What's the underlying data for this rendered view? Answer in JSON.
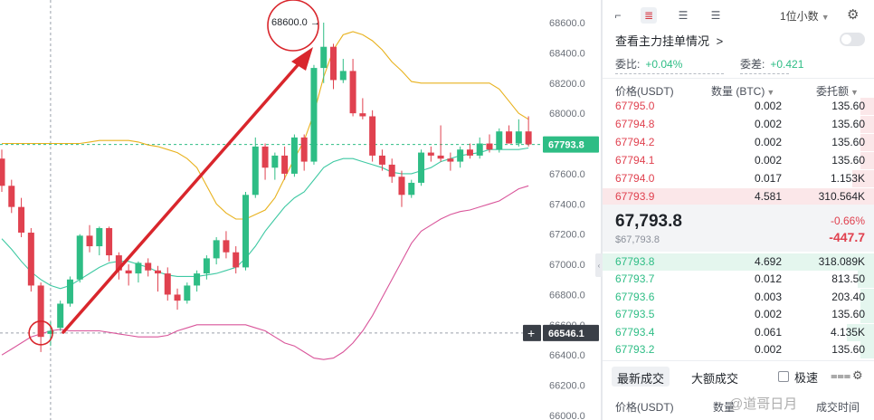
{
  "chart_data": {
    "type": "candlestick",
    "ylim": [
      66000,
      68700
    ],
    "y_ticks": [
      "68600.0",
      "68400.0",
      "68200.0",
      "68000.0",
      "67800.0",
      "67600.0",
      "67400.0",
      "67200.0",
      "67000.0",
      "66800.0",
      "66600.0",
      "66400.0",
      "66200.0",
      "66000.0"
    ],
    "current_price_label": "67793.8",
    "current_price": 67793.8,
    "crosshair_price_label": "66546.1",
    "crosshair_price": 66546.1,
    "high_annotation": "68600.0",
    "high_value": 68600,
    "low_value": 66420,
    "candles": [
      {
        "o": 67700,
        "h": 67760,
        "l": 67480,
        "c": 67520
      },
      {
        "o": 67520,
        "h": 67560,
        "l": 67340,
        "c": 67380
      },
      {
        "o": 67380,
        "h": 67440,
        "l": 67180,
        "c": 67210
      },
      {
        "o": 67210,
        "h": 67240,
        "l": 66820,
        "c": 66860
      },
      {
        "o": 66860,
        "h": 66880,
        "l": 66420,
        "c": 66520
      },
      {
        "o": 66540,
        "h": 66620,
        "l": 66460,
        "c": 66560
      },
      {
        "o": 66580,
        "h": 66760,
        "l": 66560,
        "c": 66740
      },
      {
        "o": 66740,
        "h": 66920,
        "l": 66720,
        "c": 66900
      },
      {
        "o": 66900,
        "h": 67200,
        "l": 66880,
        "c": 67190
      },
      {
        "o": 67190,
        "h": 67260,
        "l": 67080,
        "c": 67120
      },
      {
        "o": 67120,
        "h": 67250,
        "l": 67060,
        "c": 67240
      },
      {
        "o": 67240,
        "h": 67250,
        "l": 67020,
        "c": 67060
      },
      {
        "o": 67060,
        "h": 67080,
        "l": 66900,
        "c": 66960
      },
      {
        "o": 66960,
        "h": 67000,
        "l": 66860,
        "c": 66940
      },
      {
        "o": 66940,
        "h": 67020,
        "l": 66880,
        "c": 67010
      },
      {
        "o": 67010,
        "h": 67040,
        "l": 66920,
        "c": 66960
      },
      {
        "o": 66960,
        "h": 66990,
        "l": 66820,
        "c": 66940
      },
      {
        "o": 66940,
        "h": 66980,
        "l": 66760,
        "c": 66800
      },
      {
        "o": 66800,
        "h": 66840,
        "l": 66700,
        "c": 66760
      },
      {
        "o": 66760,
        "h": 66880,
        "l": 66740,
        "c": 66860
      },
      {
        "o": 66860,
        "h": 66960,
        "l": 66820,
        "c": 66940
      },
      {
        "o": 66940,
        "h": 67060,
        "l": 66900,
        "c": 67040
      },
      {
        "o": 67040,
        "h": 67180,
        "l": 67000,
        "c": 67160
      },
      {
        "o": 67160,
        "h": 67220,
        "l": 67040,
        "c": 67080
      },
      {
        "o": 67080,
        "h": 67120,
        "l": 66940,
        "c": 66980
      },
      {
        "o": 66980,
        "h": 67480,
        "l": 66960,
        "c": 67460
      },
      {
        "o": 67460,
        "h": 67840,
        "l": 67440,
        "c": 67780
      },
      {
        "o": 67780,
        "h": 67800,
        "l": 67560,
        "c": 67640
      },
      {
        "o": 67640,
        "h": 67740,
        "l": 67560,
        "c": 67720
      },
      {
        "o": 67720,
        "h": 67780,
        "l": 67560,
        "c": 67600
      },
      {
        "o": 67600,
        "h": 67860,
        "l": 67580,
        "c": 67840
      },
      {
        "o": 67840,
        "h": 67860,
        "l": 67620,
        "c": 67680
      },
      {
        "o": 67680,
        "h": 68320,
        "l": 67660,
        "c": 68300
      },
      {
        "o": 68300,
        "h": 68600,
        "l": 68200,
        "c": 68440
      },
      {
        "o": 68440,
        "h": 68460,
        "l": 68160,
        "c": 68220
      },
      {
        "o": 68220,
        "h": 68360,
        "l": 68200,
        "c": 68280
      },
      {
        "o": 68280,
        "h": 68360,
        "l": 67980,
        "c": 68000
      },
      {
        "o": 68000,
        "h": 68100,
        "l": 67960,
        "c": 67980
      },
      {
        "o": 67980,
        "h": 68020,
        "l": 67680,
        "c": 67720
      },
      {
        "o": 67720,
        "h": 67760,
        "l": 67620,
        "c": 67660
      },
      {
        "o": 67660,
        "h": 67700,
        "l": 67540,
        "c": 67580
      },
      {
        "o": 67580,
        "h": 67620,
        "l": 67380,
        "c": 67460
      },
      {
        "o": 67460,
        "h": 67560,
        "l": 67440,
        "c": 67540
      },
      {
        "o": 67540,
        "h": 67760,
        "l": 67520,
        "c": 67740
      },
      {
        "o": 67740,
        "h": 67780,
        "l": 67680,
        "c": 67720
      },
      {
        "o": 67720,
        "h": 67920,
        "l": 67680,
        "c": 67700
      },
      {
        "o": 67700,
        "h": 67740,
        "l": 67620,
        "c": 67680
      },
      {
        "o": 67680,
        "h": 67780,
        "l": 67640,
        "c": 67760
      },
      {
        "o": 67760,
        "h": 67800,
        "l": 67700,
        "c": 67720
      },
      {
        "o": 67720,
        "h": 67840,
        "l": 67700,
        "c": 67800
      },
      {
        "o": 67800,
        "h": 67860,
        "l": 67740,
        "c": 67760
      },
      {
        "o": 67760,
        "h": 67900,
        "l": 67740,
        "c": 67880
      },
      {
        "o": 67880,
        "h": 67920,
        "l": 67800,
        "c": 67800
      },
      {
        "o": 67800,
        "h": 67960,
        "l": 67780,
        "c": 67880
      },
      {
        "o": 67880,
        "h": 67980,
        "l": 67780,
        "c": 67794
      }
    ],
    "boll_upper": [
      67800,
      67800,
      67800,
      67800,
      67800,
      67800,
      67800,
      67800,
      67800,
      67810,
      67820,
      67820,
      67820,
      67820,
      67810,
      67790,
      67780,
      67760,
      67740,
      67700,
      67640,
      67520,
      67400,
      67340,
      67300,
      67300,
      67330,
      67360,
      67440,
      67570,
      67700,
      67820,
      68000,
      68240,
      68420,
      68520,
      68540,
      68520,
      68480,
      68420,
      68340,
      68280,
      68210,
      68200,
      68200,
      68200,
      68200,
      68200,
      68200,
      68200,
      68200,
      68160,
      68080,
      68000,
      67960
    ],
    "boll_mid": [
      67170,
      67100,
      67020,
      66950,
      66900,
      66860,
      66840,
      66860,
      66900,
      66940,
      66980,
      67010,
      67020,
      67020,
      67000,
      66980,
      66950,
      66930,
      66920,
      66920,
      66920,
      66930,
      66940,
      66960,
      66980,
      67040,
      67120,
      67220,
      67300,
      67380,
      67440,
      67480,
      67560,
      67640,
      67680,
      67700,
      67700,
      67680,
      67660,
      67640,
      67610,
      67600,
      67600,
      67620,
      67640,
      67680,
      67700,
      67720,
      67730,
      67740,
      67760,
      67760,
      67760,
      67760,
      67770
    ],
    "boll_lower": [
      66400,
      66440,
      66480,
      66520,
      66540,
      66560,
      66570,
      66560,
      66560,
      66560,
      66560,
      66550,
      66540,
      66530,
      66520,
      66520,
      66520,
      66530,
      66560,
      66580,
      66600,
      66600,
      66600,
      66600,
      66600,
      66600,
      66580,
      66560,
      66520,
      66480,
      66460,
      66420,
      66380,
      66370,
      66380,
      66420,
      66480,
      66560,
      66660,
      66780,
      66900,
      67020,
      67140,
      67220,
      67260,
      67300,
      67330,
      67350,
      67360,
      67380,
      67400,
      67420,
      67460,
      67500,
      67520
    ],
    "annotations": [
      "red circle around low near 66546.1",
      "red circle around high 68600.0",
      "red arrow from low to high"
    ]
  },
  "toolbar": {
    "precision_label": "1位小数"
  },
  "header": {
    "main_orders_label": "查看主力挂单情况",
    "chevron": ">"
  },
  "ratios": {
    "commission_ratio_label": "委比:",
    "commission_ratio_value": "+0.04%",
    "commission_diff_label": "委差:",
    "commission_diff_value": "+0.421"
  },
  "columns": {
    "price": "价格(USDT)",
    "qty": "数量 (BTC)",
    "total": "委托额"
  },
  "asks": [
    {
      "price": "67795.0",
      "qty": "0.002",
      "total": "135.60",
      "depth": 0.05
    },
    {
      "price": "67794.8",
      "qty": "0.002",
      "total": "135.60",
      "depth": 0.05
    },
    {
      "price": "67794.2",
      "qty": "0.002",
      "total": "135.60",
      "depth": 0.05
    },
    {
      "price": "67794.1",
      "qty": "0.002",
      "total": "135.60",
      "depth": 0.05
    },
    {
      "price": "67794.0",
      "qty": "0.017",
      "total": "1.153K",
      "depth": 0.08
    },
    {
      "price": "67793.9",
      "qty": "4.581",
      "total": "310.564K",
      "depth": 1.0
    }
  ],
  "mid": {
    "price": "67,793.8",
    "sub_price": "$67,793.8",
    "pct": "-0.66%",
    "change": "-447.7"
  },
  "bids": [
    {
      "price": "67793.8",
      "qty": "4.692",
      "total": "318.089K",
      "depth": 1.0
    },
    {
      "price": "67793.7",
      "qty": "0.012",
      "total": "813.50",
      "depth": 0.06
    },
    {
      "price": "67793.6",
      "qty": "0.003",
      "total": "203.40",
      "depth": 0.05
    },
    {
      "price": "67793.5",
      "qty": "0.002",
      "total": "135.60",
      "depth": 0.05
    },
    {
      "price": "67793.4",
      "qty": "0.061",
      "total": "4.135K",
      "depth": 0.1
    },
    {
      "price": "67793.2",
      "qty": "0.002",
      "total": "135.60",
      "depth": 0.05
    }
  ],
  "bottom_tabs": {
    "latest_trades": "最新成交",
    "large_trades": "大额成交",
    "speed_label": "极速"
  },
  "trade_columns": {
    "price": "价格(USDT)",
    "qty": "数量",
    "time": "成交时间"
  },
  "watermark": "@道哥日月"
}
